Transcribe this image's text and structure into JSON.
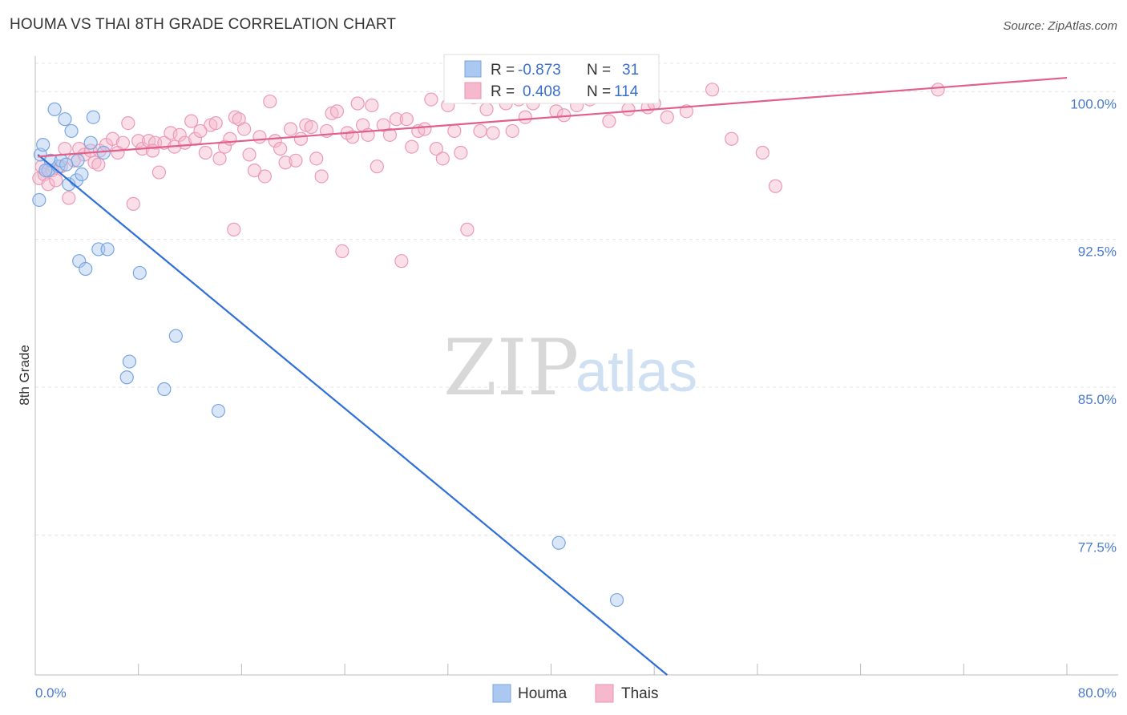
{
  "header": {
    "title": "HOUMA VS THAI 8TH GRADE CORRELATION CHART",
    "source": "Source: ZipAtlas.com"
  },
  "watermark": {
    "zip": "ZIP",
    "atlas": "atlas"
  },
  "legend": {
    "rows": [
      {
        "r_label": "R =",
        "r_value": "-0.873",
        "n_label": "N =",
        "n_value": "31",
        "color": "#aac8f0"
      },
      {
        "r_label": "R =",
        "r_value": "0.408",
        "n_label": "N =",
        "n_value": "114",
        "color": "#f5b8cc"
      }
    ],
    "bottom": [
      {
        "label": "Houma",
        "color": "#aac8f0"
      },
      {
        "label": "Thais",
        "color": "#f5b8cc"
      }
    ]
  },
  "chart_data": {
    "type": "scatter",
    "title": "HOUMA VS THAI 8TH GRADE CORRELATION CHART",
    "xlabel": "",
    "ylabel": "8th Grade",
    "xlim": [
      0,
      80
    ],
    "ylim": [
      70.4,
      101.8
    ],
    "x_tick_labels": [
      "0.0%",
      "80.0%"
    ],
    "y_ticks": [
      {
        "value": 100.0,
        "label": "100.0%"
      },
      {
        "value": 92.5,
        "label": "92.5%"
      },
      {
        "value": 85.0,
        "label": "85.0%"
      },
      {
        "value": 77.5,
        "label": "77.5%"
      }
    ],
    "grid": true,
    "series": [
      {
        "name": "Houma",
        "color": "#aac8f0",
        "line_color": "#2f6fd8",
        "trend": {
          "x0": 0.2,
          "y0": 96.8,
          "x1": 49.0,
          "y1": 70.4
        },
        "points": [
          [
            0.3,
            94.5
          ],
          [
            0.4,
            96.8
          ],
          [
            0.6,
            97.3
          ],
          [
            1.0,
            96.0
          ],
          [
            1.2,
            96.5
          ],
          [
            1.5,
            99.1
          ],
          [
            1.8,
            96.2
          ],
          [
            2.0,
            96.5
          ],
          [
            2.3,
            98.6
          ],
          [
            2.6,
            95.3
          ],
          [
            2.8,
            98.0
          ],
          [
            3.2,
            95.5
          ],
          [
            3.3,
            96.5
          ],
          [
            3.4,
            91.4
          ],
          [
            3.6,
            95.8
          ],
          [
            3.9,
            91.0
          ],
          [
            4.3,
            97.4
          ],
          [
            4.5,
            98.7
          ],
          [
            4.9,
            92.0
          ],
          [
            5.3,
            96.9
          ],
          [
            5.6,
            92.0
          ],
          [
            7.1,
            85.5
          ],
          [
            7.3,
            86.3
          ],
          [
            8.1,
            90.8
          ],
          [
            10.0,
            84.9
          ],
          [
            10.9,
            87.6
          ],
          [
            14.2,
            83.8
          ],
          [
            40.6,
            77.1
          ],
          [
            45.1,
            74.2
          ],
          [
            0.8,
            96.0
          ],
          [
            2.4,
            96.3
          ]
        ]
      },
      {
        "name": "Thais",
        "color": "#f5b8cc",
        "line_color": "#e0608a",
        "trend": {
          "x0": 0.2,
          "y0": 96.7,
          "x1": 80.0,
          "y1": 100.7
        },
        "points": [
          [
            0.3,
            95.6
          ],
          [
            0.5,
            96.2
          ],
          [
            0.7,
            95.8
          ],
          [
            1.0,
            95.3
          ],
          [
            1.3,
            96.0
          ],
          [
            1.6,
            95.5
          ],
          [
            2.0,
            96.2
          ],
          [
            2.3,
            97.1
          ],
          [
            2.6,
            94.6
          ],
          [
            3.0,
            96.5
          ],
          [
            3.4,
            97.1
          ],
          [
            3.8,
            96.8
          ],
          [
            4.3,
            97.0
          ],
          [
            4.6,
            96.4
          ],
          [
            5.0,
            97.0
          ],
          [
            5.5,
            97.3
          ],
          [
            6.0,
            97.6
          ],
          [
            6.4,
            96.9
          ],
          [
            6.8,
            97.4
          ],
          [
            7.2,
            98.4
          ],
          [
            7.6,
            94.3
          ],
          [
            8.0,
            97.5
          ],
          [
            8.3,
            97.1
          ],
          [
            8.8,
            97.5
          ],
          [
            9.3,
            97.4
          ],
          [
            9.6,
            95.9
          ],
          [
            10.0,
            97.4
          ],
          [
            10.5,
            97.9
          ],
          [
            10.8,
            97.2
          ],
          [
            11.2,
            97.8
          ],
          [
            11.6,
            97.4
          ],
          [
            12.1,
            98.5
          ],
          [
            12.4,
            97.6
          ],
          [
            12.8,
            98.0
          ],
          [
            13.2,
            96.9
          ],
          [
            13.6,
            98.3
          ],
          [
            14.0,
            98.4
          ],
          [
            14.3,
            96.6
          ],
          [
            14.7,
            97.2
          ],
          [
            15.1,
            97.6
          ],
          [
            15.5,
            98.7
          ],
          [
            15.8,
            98.6
          ],
          [
            16.2,
            98.1
          ],
          [
            16.6,
            96.8
          ],
          [
            17.0,
            96.0
          ],
          [
            17.4,
            97.7
          ],
          [
            17.8,
            95.7
          ],
          [
            18.2,
            99.5
          ],
          [
            18.6,
            97.5
          ],
          [
            19.0,
            97.1
          ],
          [
            19.4,
            96.4
          ],
          [
            19.8,
            98.1
          ],
          [
            20.2,
            96.5
          ],
          [
            20.6,
            97.6
          ],
          [
            21.0,
            98.3
          ],
          [
            21.4,
            98.2
          ],
          [
            21.8,
            96.6
          ],
          [
            22.2,
            95.7
          ],
          [
            22.6,
            98.0
          ],
          [
            23.0,
            98.9
          ],
          [
            23.4,
            99.0
          ],
          [
            23.8,
            91.9
          ],
          [
            24.2,
            97.9
          ],
          [
            24.6,
            97.7
          ],
          [
            25.0,
            99.4
          ],
          [
            25.4,
            98.3
          ],
          [
            25.8,
            97.8
          ],
          [
            26.1,
            99.3
          ],
          [
            26.5,
            96.2
          ],
          [
            27.0,
            98.3
          ],
          [
            27.5,
            97.8
          ],
          [
            28.0,
            98.6
          ],
          [
            28.4,
            91.4
          ],
          [
            28.8,
            98.6
          ],
          [
            29.2,
            97.2
          ],
          [
            29.7,
            98.0
          ],
          [
            30.2,
            98.1
          ],
          [
            30.7,
            99.6
          ],
          [
            31.1,
            97.1
          ],
          [
            31.6,
            96.6
          ],
          [
            32.0,
            99.3
          ],
          [
            32.5,
            98.0
          ],
          [
            33.0,
            96.9
          ],
          [
            33.5,
            93.0
          ],
          [
            34.0,
            99.7
          ],
          [
            34.5,
            98.0
          ],
          [
            35.0,
            99.1
          ],
          [
            35.5,
            97.9
          ],
          [
            36.0,
            100.0
          ],
          [
            36.5,
            99.4
          ],
          [
            37.0,
            98.0
          ],
          [
            37.5,
            99.6
          ],
          [
            38.0,
            98.7
          ],
          [
            38.6,
            99.4
          ],
          [
            39.2,
            99.8
          ],
          [
            39.8,
            100.0
          ],
          [
            40.4,
            99.0
          ],
          [
            41.0,
            98.8
          ],
          [
            42.0,
            99.3
          ],
          [
            43.0,
            99.6
          ],
          [
            44.5,
            98.5
          ],
          [
            46.0,
            99.1
          ],
          [
            47.5,
            99.2
          ],
          [
            49.0,
            98.7
          ],
          [
            50.5,
            99.0
          ],
          [
            52.5,
            100.1
          ],
          [
            54.0,
            97.6
          ],
          [
            56.4,
            96.9
          ],
          [
            57.4,
            95.2
          ],
          [
            70.0,
            100.1
          ],
          [
            4.9,
            96.3
          ],
          [
            9.1,
            97.0
          ],
          [
            15.4,
            93.0
          ],
          [
            48.0,
            99.4
          ]
        ]
      }
    ]
  }
}
